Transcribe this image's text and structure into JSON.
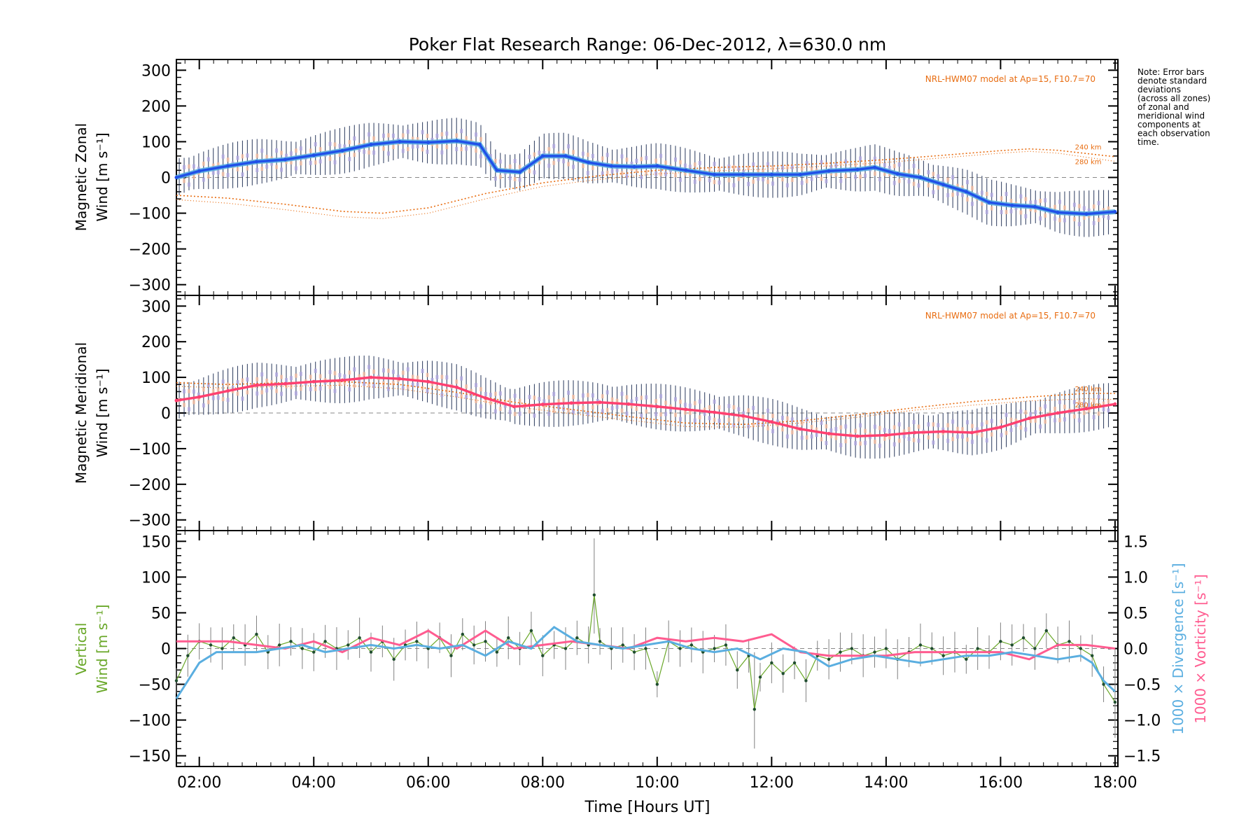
{
  "figure": {
    "title": "Poker Flat Research Range: 06-Dec-2012, λ=630.0 nm",
    "note_lines": [
      "Note: Error bars",
      "denote standard",
      "deviations",
      "(across all zones)",
      "of zonal and",
      "meridional wind",
      "components at",
      "each observation",
      "time."
    ],
    "model_label": "NRL-HWM07 model at Ap=15, F10.7=70",
    "xlabel": "Time [Hours UT]",
    "xticks": [
      "02:00",
      "04:00",
      "06:00",
      "08:00",
      "10:00",
      "12:00",
      "14:00",
      "16:00",
      "18:00"
    ]
  },
  "chart_data": [
    {
      "type": "line",
      "name_ylabel_line1": "Magnetic Zonal",
      "name_ylabel_line2": "Wind [m s⁻¹]",
      "ylim": [
        -330,
        330
      ],
      "yticks": [
        300,
        200,
        100,
        0,
        -100,
        -200,
        -300
      ],
      "model_annotations": [
        "240 km",
        "280 km"
      ],
      "colors": {
        "mean": "#2050e8",
        "smooth": "#5aaee0",
        "model": "#e86c10",
        "errorbar": "#1a2a50"
      },
      "mean_wind": {
        "x": [
          1.6,
          2.0,
          2.5,
          3.0,
          3.5,
          4.0,
          4.5,
          5.0,
          5.5,
          6.0,
          6.5,
          6.9,
          7.2,
          7.6,
          8.0,
          8.4,
          8.8,
          9.2,
          9.6,
          10.0,
          10.5,
          11.0,
          11.5,
          12.0,
          12.5,
          13.0,
          13.5,
          13.8,
          14.2,
          14.6,
          15.0,
          15.4,
          15.8,
          16.2,
          16.6,
          17.0,
          17.5,
          18.0
        ],
        "y": [
          0,
          18,
          32,
          44,
          50,
          62,
          75,
          92,
          100,
          98,
          102,
          92,
          20,
          15,
          60,
          60,
          42,
          32,
          30,
          32,
          20,
          8,
          8,
          8,
          8,
          18,
          22,
          28,
          10,
          0,
          -20,
          -40,
          -70,
          -78,
          -82,
          -98,
          -102,
          -96
        ]
      },
      "model_240km": {
        "x": [
          1.6,
          2.5,
          3.5,
          4.5,
          5.2,
          6.0,
          7.0,
          8.0,
          9.0,
          10.0,
          11.0,
          12.0,
          13.0,
          14.0,
          15.0,
          16.0,
          16.5,
          17.0,
          18.0
        ],
        "y": [
          -50,
          -58,
          -75,
          -95,
          -100,
          -85,
          -45,
          -15,
          5,
          20,
          28,
          32,
          40,
          50,
          62,
          75,
          80,
          76,
          58
        ]
      },
      "model_280km": {
        "x": [
          1.6,
          2.5,
          3.5,
          4.5,
          5.2,
          6.0,
          7.0,
          8.0,
          9.0,
          10.0,
          11.0,
          12.0,
          13.0,
          14.0,
          15.0,
          16.0,
          16.5,
          17.0,
          18.0
        ],
        "y": [
          -62,
          -72,
          -90,
          -110,
          -115,
          -100,
          -60,
          -25,
          -5,
          10,
          18,
          24,
          32,
          42,
          55,
          68,
          73,
          68,
          45
        ]
      }
    },
    {
      "type": "line",
      "name_ylabel_line1": "Magnetic Meridional",
      "name_ylabel_line2": "Wind [m s⁻¹]",
      "ylim": [
        -330,
        330
      ],
      "yticks": [
        300,
        200,
        100,
        0,
        -100,
        -200,
        -300
      ],
      "model_annotations": [
        "240 km",
        "280 km"
      ],
      "colors": {
        "mean": "#ff4070",
        "model": "#e86c10",
        "errorbar": "#1a2a50"
      },
      "mean_wind": {
        "x": [
          1.6,
          2.0,
          2.5,
          3.0,
          3.5,
          4.0,
          4.5,
          5.0,
          5.5,
          6.0,
          6.5,
          7.0,
          7.5,
          8.0,
          8.5,
          9.0,
          9.5,
          10.0,
          10.5,
          11.0,
          11.5,
          12.0,
          12.5,
          13.0,
          13.5,
          14.0,
          14.5,
          15.0,
          15.5,
          16.0,
          16.5,
          17.0,
          17.5,
          18.0
        ],
        "y": [
          35,
          45,
          62,
          78,
          82,
          88,
          92,
          100,
          96,
          88,
          72,
          42,
          18,
          24,
          28,
          30,
          25,
          18,
          10,
          2,
          -8,
          -25,
          -45,
          -58,
          -65,
          -62,
          -55,
          -52,
          -55,
          -40,
          -15,
          0,
          12,
          25
        ]
      },
      "model_240km": {
        "x": [
          1.6,
          2.5,
          3.5,
          4.5,
          5.5,
          6.5,
          7.5,
          8.5,
          9.5,
          10.5,
          11.5,
          12.5,
          13.5,
          14.5,
          15.5,
          16.5,
          17.5,
          18.0
        ],
        "y": [
          85,
          80,
          85,
          88,
          80,
          58,
          30,
          10,
          -10,
          -28,
          -32,
          -22,
          -5,
          15,
          32,
          45,
          55,
          55
        ]
      },
      "model_280km": {
        "x": [
          1.6,
          2.5,
          3.5,
          4.5,
          5.5,
          6.5,
          7.5,
          8.5,
          9.5,
          10.5,
          11.5,
          12.5,
          13.5,
          14.5,
          15.5,
          16.5,
          17.5,
          18.0
        ],
        "y": [
          75,
          70,
          75,
          78,
          68,
          45,
          18,
          -2,
          -20,
          -38,
          -40,
          -28,
          -12,
          8,
          22,
          34,
          40,
          38
        ]
      }
    },
    {
      "type": "line",
      "name_ylabel_left_line1": "Vertical",
      "name_ylabel_left_line2": "Wind [m s⁻¹]",
      "name_ylabel_right1": "1000 × Divergence [s⁻¹]",
      "name_ylabel_right2": "1000 × Vorticity [s⁻¹]",
      "ylim": [
        -165,
        165
      ],
      "yticks": [
        150,
        100,
        50,
        0,
        -50,
        -100,
        -150
      ],
      "ylim_right": [
        -1.65,
        1.65
      ],
      "yticks_right": [
        1.5,
        1.0,
        0.5,
        0.0,
        -0.5,
        -1.0,
        -1.5
      ],
      "colors": {
        "vertical": "#6aa82a",
        "divergence": "#5aaee0",
        "vorticity": "#ff5c90",
        "errorbar": "#808080"
      },
      "vertical_wind": {
        "x": [
          1.6,
          1.8,
          2.0,
          2.2,
          2.4,
          2.6,
          2.8,
          3.0,
          3.2,
          3.4,
          3.6,
          3.8,
          4.0,
          4.2,
          4.4,
          4.6,
          4.8,
          5.0,
          5.2,
          5.4,
          5.6,
          5.8,
          6.0,
          6.2,
          6.4,
          6.6,
          6.8,
          7.0,
          7.2,
          7.4,
          7.6,
          7.8,
          8.0,
          8.2,
          8.4,
          8.6,
          8.8,
          8.9,
          9.0,
          9.2,
          9.4,
          9.6,
          9.8,
          10.0,
          10.2,
          10.4,
          10.6,
          10.8,
          11.0,
          11.2,
          11.4,
          11.6,
          11.7,
          11.8,
          12.0,
          12.2,
          12.4,
          12.6,
          12.8,
          13.0,
          13.2,
          13.4,
          13.6,
          13.8,
          14.0,
          14.2,
          14.4,
          14.6,
          14.8,
          15.0,
          15.2,
          15.4,
          15.6,
          15.8,
          16.0,
          16.2,
          16.4,
          16.6,
          16.8,
          17.0,
          17.2,
          17.4,
          17.6,
          17.8,
          18.0
        ],
        "y": [
          -45,
          -10,
          10,
          5,
          0,
          15,
          5,
          20,
          -5,
          5,
          10,
          0,
          -5,
          10,
          0,
          5,
          15,
          -5,
          10,
          -15,
          5,
          10,
          0,
          15,
          -10,
          20,
          5,
          10,
          -5,
          15,
          0,
          25,
          -10,
          5,
          0,
          15,
          5,
          75,
          10,
          0,
          5,
          -5,
          0,
          -50,
          10,
          0,
          5,
          -5,
          0,
          5,
          -30,
          -10,
          -85,
          -40,
          -20,
          -35,
          -20,
          -45,
          -10,
          -15,
          -5,
          0,
          -10,
          -5,
          0,
          -15,
          -5,
          5,
          0,
          -10,
          -5,
          -15,
          0,
          -5,
          10,
          5,
          15,
          0,
          25,
          5,
          10,
          0,
          -10,
          -50,
          -75
        ]
      },
      "divergence": {
        "x": [
          1.6,
          1.8,
          2.0,
          2.3,
          2.6,
          3.0,
          3.4,
          3.8,
          4.2,
          4.6,
          5.0,
          5.4,
          5.8,
          6.2,
          6.6,
          7.0,
          7.4,
          7.8,
          8.2,
          8.6,
          9.0,
          9.4,
          9.8,
          10.2,
          10.6,
          11.0,
          11.4,
          11.8,
          12.2,
          12.6,
          13.0,
          13.4,
          13.8,
          14.2,
          14.6,
          15.0,
          15.4,
          15.8,
          16.2,
          16.6,
          17.0,
          17.4,
          17.6,
          17.8,
          18.0
        ],
        "y": [
          -0.7,
          -0.45,
          -0.2,
          -0.05,
          -0.05,
          -0.05,
          0.0,
          0.05,
          -0.05,
          0.0,
          0.05,
          0.0,
          0.05,
          0.0,
          0.05,
          -0.1,
          0.1,
          0.0,
          0.3,
          0.1,
          0.05,
          0.0,
          0.05,
          0.1,
          0.0,
          -0.05,
          0.0,
          -0.15,
          0.0,
          -0.05,
          -0.25,
          -0.15,
          -0.1,
          -0.15,
          -0.2,
          -0.15,
          -0.1,
          -0.1,
          -0.05,
          -0.1,
          -0.15,
          -0.1,
          -0.2,
          -0.45,
          -0.6
        ]
      },
      "vorticity": {
        "x": [
          1.6,
          2.0,
          2.5,
          3.0,
          3.5,
          4.0,
          4.5,
          5.0,
          5.5,
          6.0,
          6.5,
          7.0,
          7.5,
          8.0,
          8.5,
          9.0,
          9.5,
          10.0,
          10.5,
          11.0,
          11.5,
          12.0,
          12.5,
          13.0,
          13.5,
          14.0,
          14.5,
          15.0,
          15.5,
          16.0,
          16.5,
          17.0,
          17.5,
          18.0
        ],
        "y": [
          0.1,
          0.1,
          0.1,
          0.05,
          0.0,
          0.1,
          -0.05,
          0.15,
          0.05,
          0.25,
          0.0,
          0.25,
          0.0,
          0.05,
          0.1,
          0.05,
          0.0,
          0.15,
          0.1,
          0.15,
          0.1,
          0.2,
          -0.05,
          -0.1,
          -0.1,
          -0.1,
          -0.05,
          -0.05,
          -0.05,
          -0.05,
          -0.15,
          0.05,
          0.05,
          0.0
        ]
      }
    }
  ]
}
